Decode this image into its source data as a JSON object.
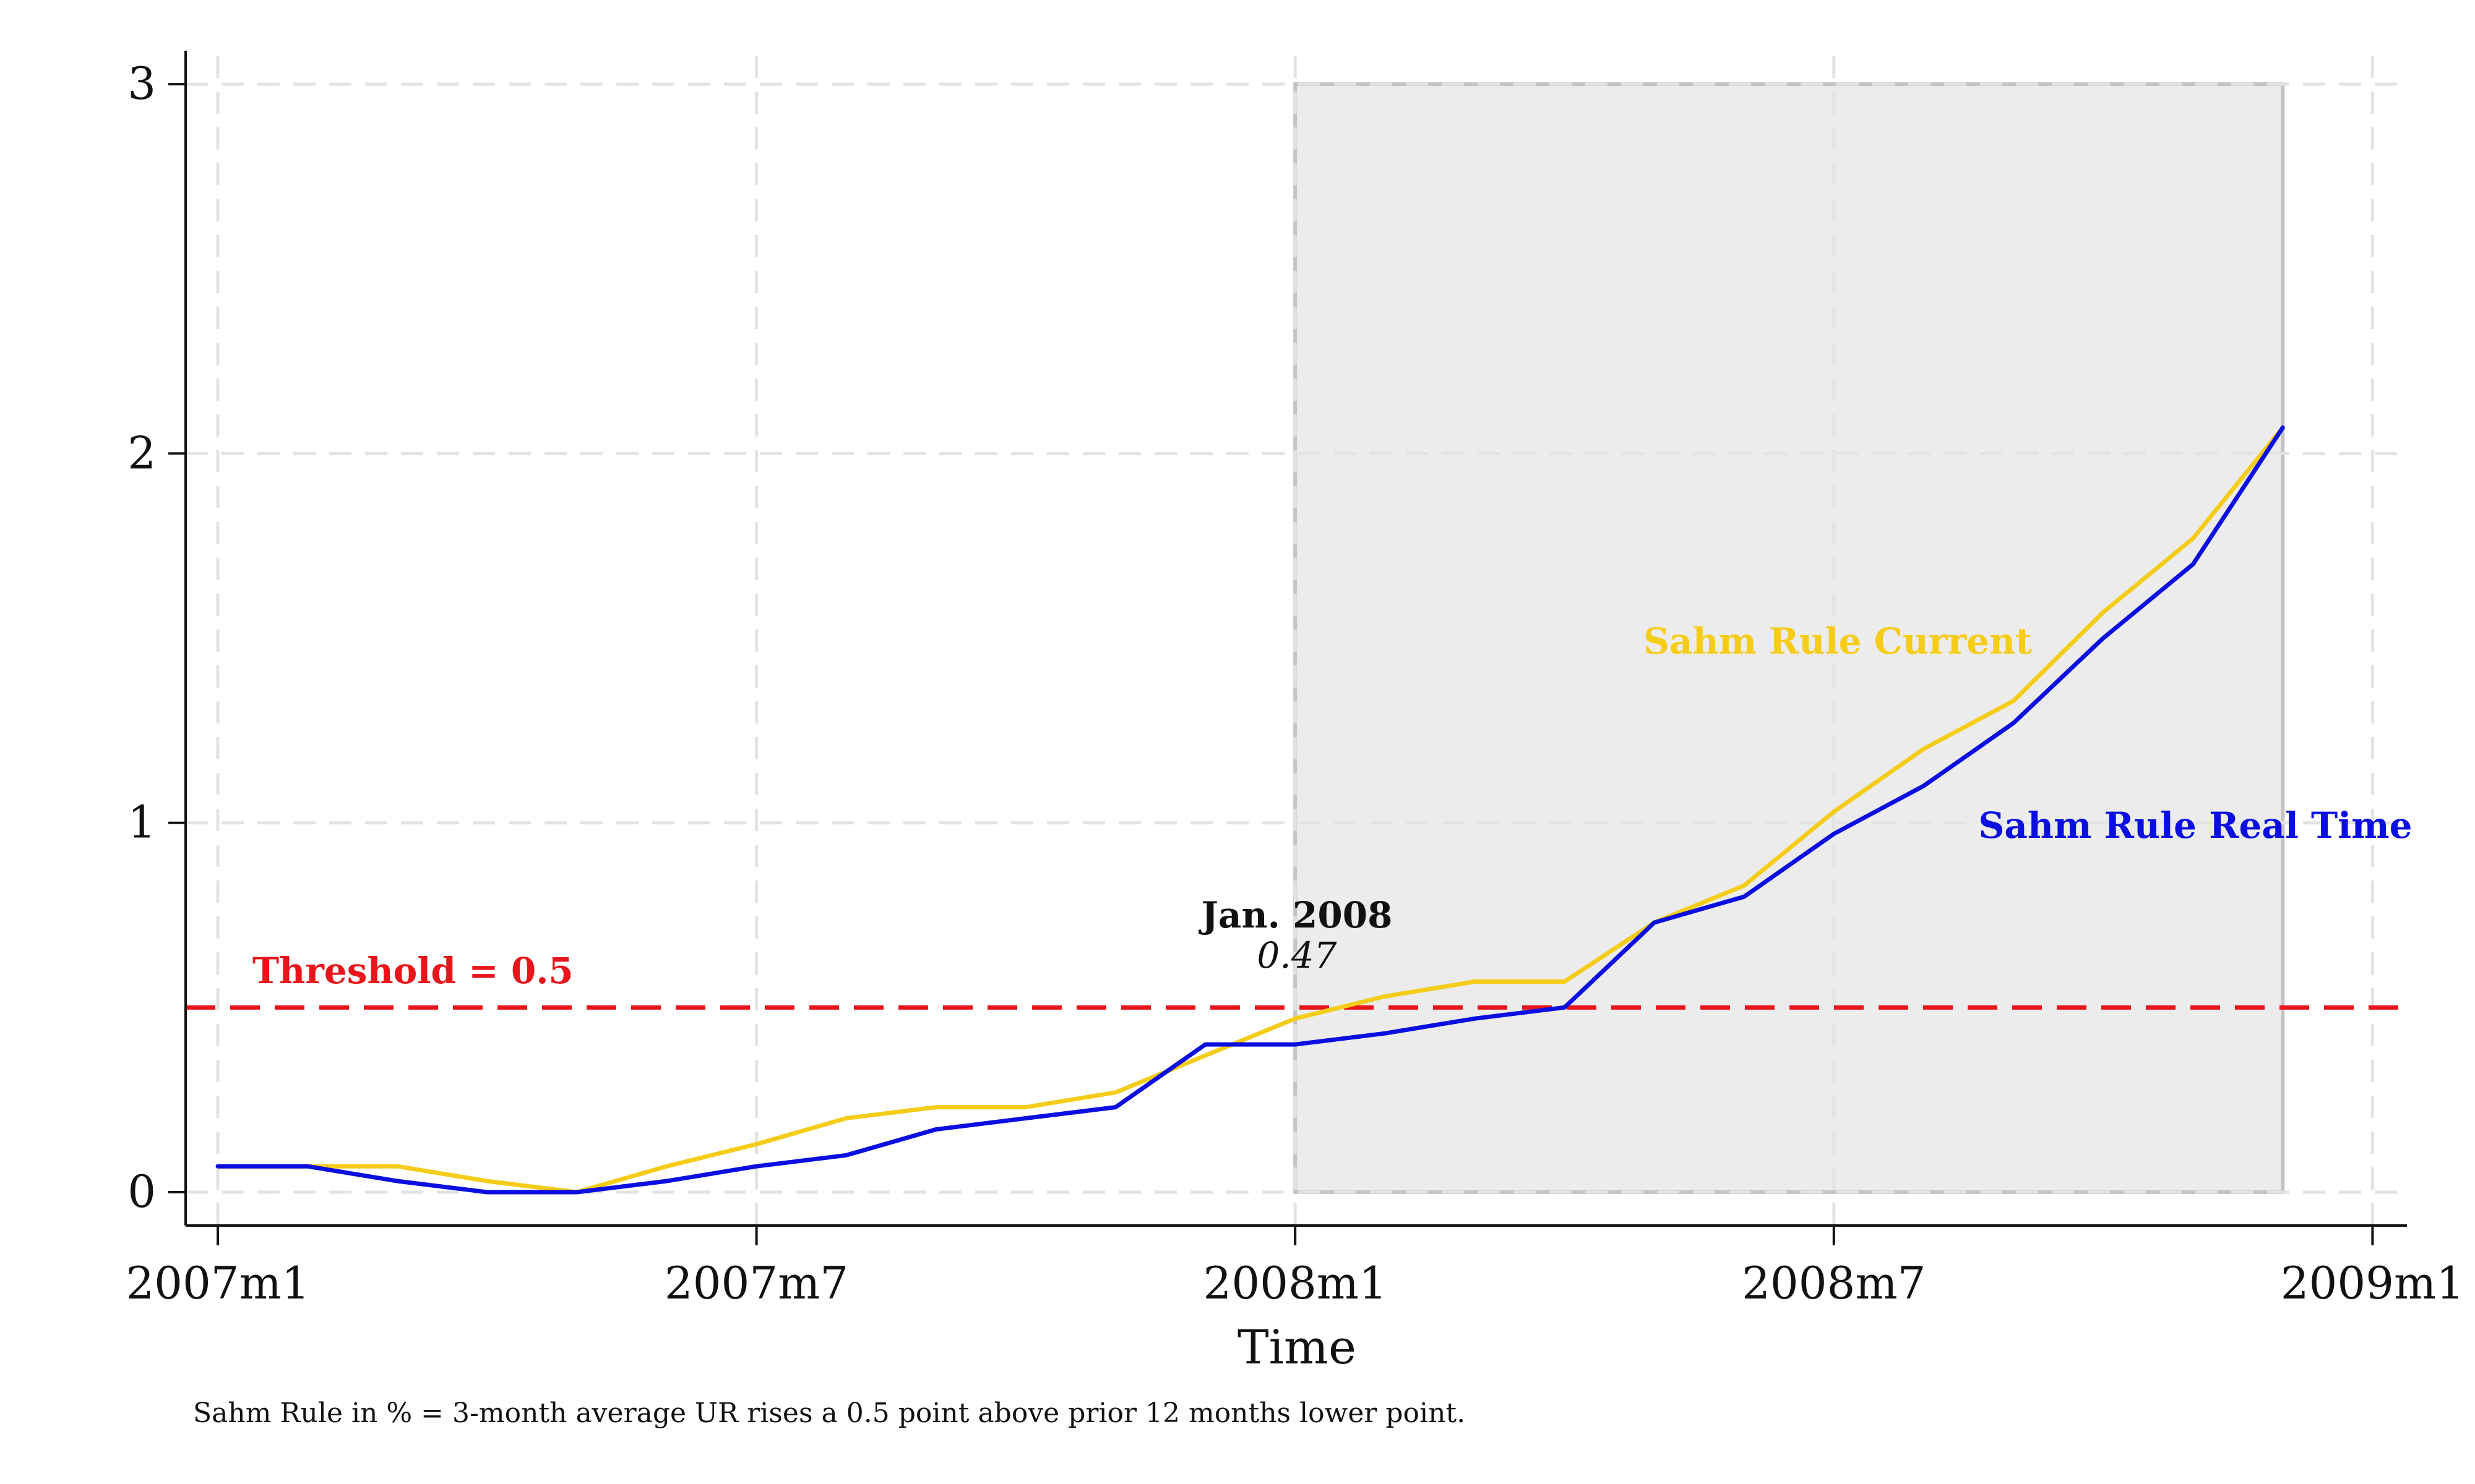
{
  "chart_data": {
    "type": "line",
    "title": "",
    "xlabel": "Time",
    "ylabel": "",
    "x_ticks": [
      "2007m1",
      "2007m7",
      "2008m1",
      "2008m7",
      "2009m1"
    ],
    "y_ticks": [
      "0",
      "1",
      "2",
      "3"
    ],
    "ylim": [
      0,
      3
    ],
    "xlim": [
      "2007m1",
      "2009m1"
    ],
    "grid": true,
    "note": "Sahm Rule in % = 3-month average UR rises a 0.5 point above prior 12 months lower point.",
    "recession_shading": {
      "start": "2008m1",
      "end": "2008m12",
      "ymin": 0,
      "ymax": 3,
      "color": "#ececec"
    },
    "threshold": {
      "value": 0.5,
      "label": "Threshold = 0.5",
      "color": "#e8151b"
    },
    "annotation": {
      "x": "2008m1",
      "title": "Jan. 2008",
      "value": "0.47"
    },
    "x": [
      "2007m1",
      "2007m2",
      "2007m3",
      "2007m4",
      "2007m5",
      "2007m6",
      "2007m7",
      "2007m8",
      "2007m9",
      "2007m10",
      "2007m11",
      "2007m12",
      "2008m1",
      "2008m2",
      "2008m3",
      "2008m4",
      "2008m5",
      "2008m6",
      "2008m7",
      "2008m8",
      "2008m9",
      "2008m10",
      "2008m11",
      "2008m12"
    ],
    "series": [
      {
        "name": "Sahm Rule Current",
        "color": "#f5cc18",
        "values": [
          0.07,
          0.07,
          0.07,
          0.03,
          0.0,
          0.07,
          0.13,
          0.2,
          0.23,
          0.23,
          0.27,
          0.37,
          0.47,
          0.53,
          0.57,
          0.57,
          0.73,
          0.83,
          1.03,
          1.2,
          1.33,
          1.57,
          1.77,
          2.07
        ]
      },
      {
        "name": "Sahm Rule Real Time",
        "color": "#0a0ee0",
        "values": [
          0.07,
          0.07,
          0.03,
          0.0,
          0.0,
          0.03,
          0.07,
          0.1,
          0.17,
          0.2,
          0.23,
          0.4,
          0.4,
          0.43,
          0.47,
          0.5,
          0.73,
          0.8,
          0.97,
          1.1,
          1.27,
          1.5,
          1.7,
          2.07
        ]
      }
    ]
  }
}
